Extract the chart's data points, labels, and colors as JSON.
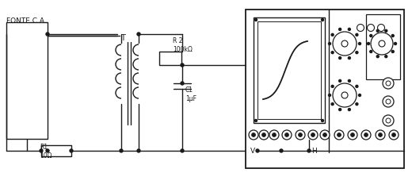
{
  "bg_color": "#ffffff",
  "line_color": "#1a1a1a",
  "fig_width": 5.2,
  "fig_height": 2.42,
  "dpi": 100,
  "fonte_label": "FONTE C.A.",
  "r1_label": "R1\n10Ω",
  "r2_label": "R 2\n100kΩ",
  "c1_label": "C1\n1µF",
  "t_label": "T",
  "v_label": "V",
  "h_label": "H"
}
